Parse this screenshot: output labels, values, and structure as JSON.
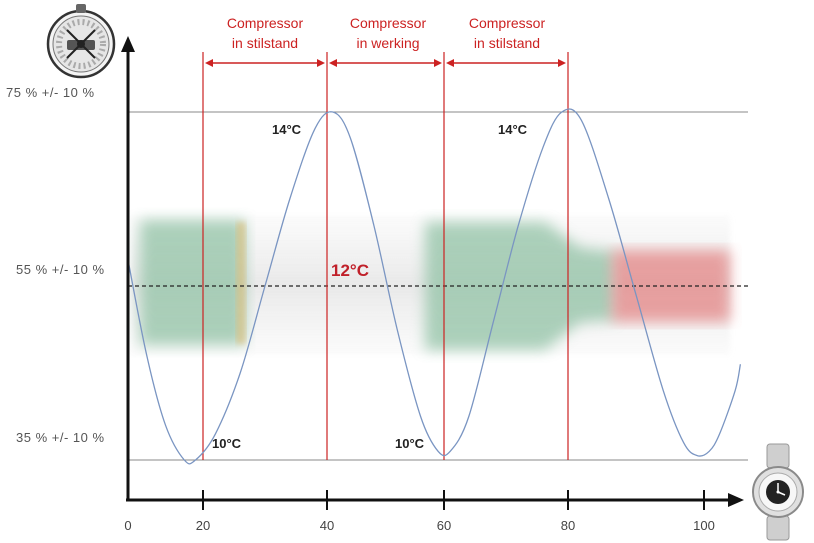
{
  "chart_data": {
    "type": "line",
    "x_ticks": [
      0,
      20,
      40,
      60,
      80,
      100
    ],
    "y_levels": [
      {
        "label": "75 % +/- 10 %",
        "value": 14
      },
      {
        "label": "55 % +/- 10 %",
        "value": 12
      },
      {
        "label": "35 % +/- 10 %",
        "value": 10
      }
    ],
    "ylim": [
      10,
      14
    ],
    "series": [
      {
        "points": [
          [
            0,
            12.3
          ],
          [
            5,
            11.2
          ],
          [
            10,
            10.4
          ],
          [
            15,
            10.0
          ],
          [
            18,
            10.0
          ],
          [
            22,
            10.3
          ],
          [
            26,
            11.0
          ],
          [
            30,
            12.0
          ],
          [
            34,
            13.0
          ],
          [
            38,
            13.8
          ],
          [
            41,
            14.0
          ],
          [
            44,
            13.7
          ],
          [
            48,
            12.7
          ],
          [
            52,
            11.5
          ],
          [
            56,
            10.5
          ],
          [
            59,
            10.1
          ],
          [
            61,
            10.1
          ],
          [
            64,
            10.5
          ],
          [
            68,
            11.6
          ],
          [
            72,
            12.7
          ],
          [
            76,
            13.6
          ],
          [
            79,
            14.0
          ],
          [
            82,
            13.9
          ],
          [
            86,
            13.0
          ],
          [
            90,
            11.9
          ],
          [
            94,
            10.8
          ],
          [
            97,
            10.2
          ],
          [
            99,
            10.05
          ],
          [
            101,
            10.1
          ],
          [
            103,
            10.3
          ],
          [
            106,
            10.8
          ],
          [
            107,
            11.1
          ]
        ]
      }
    ],
    "markers_x": [
      20,
      40,
      60,
      80
    ],
    "phase_labels": [
      {
        "x_from": 20,
        "x_to": 40,
        "line1": "Compressor",
        "line2": "in stilstand"
      },
      {
        "x_from": 40,
        "x_to": 60,
        "line1": "Compressor",
        "line2": "in werking"
      },
      {
        "x_from": 60,
        "x_to": 80,
        "line1": "Compressor",
        "line2": "in stilstand"
      }
    ],
    "temp_labels": [
      {
        "text": "14°C",
        "x": 40,
        "y": 14
      },
      {
        "text": "14°C",
        "x": 80,
        "y": 14
      },
      {
        "text": "10°C",
        "x": 20,
        "y": 10
      },
      {
        "text": "10°C",
        "x": 60,
        "y": 10
      }
    ],
    "center_label": "12°C",
    "colors": {
      "curve": "#7a95c2",
      "marker": "#cc2222",
      "axis": "#111111",
      "band_green": "#7fb896",
      "band_red": "#e07878"
    },
    "icons": {
      "top_left": "hygrometer-icon",
      "bottom_right": "clock-icon"
    }
  }
}
